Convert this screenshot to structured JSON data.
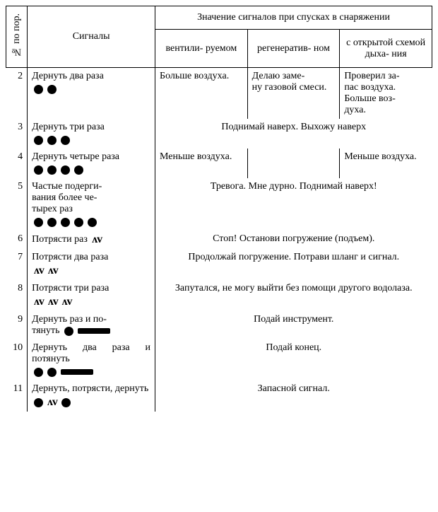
{
  "header": {
    "num": "№ по пор.",
    "signals": "Сигналы",
    "meanings_title": "Значение сигналов при спусках в снаряжении",
    "col_vent": "вентили-\nруемом",
    "col_regen": "регенератив-\nном",
    "col_open": "с открытой схемой дыха-\nния"
  },
  "rows": [
    {
      "n": "2",
      "signal_text": "Дернуть два раза",
      "symbols": "dot dot",
      "m1": "Больше воздуха.",
      "m2": "Делаю заме-\nну газовой смеси.",
      "m3": "Проверил за-\nпас воздуха. Больше воз-\nдуха.",
      "split": true
    },
    {
      "n": "3",
      "signal_text": "Дернуть три раза",
      "symbols": "dot dot dot",
      "merged": "Поднимай наверх. Выхожу наверх"
    },
    {
      "n": "4",
      "signal_text": "Дернуть четыре раза",
      "symbols": "dot dot dot dot",
      "m1": "Меньше воздуха.",
      "m2": "",
      "m3": "Меньше воздуха.",
      "split": true
    },
    {
      "n": "5",
      "signal_text": "Частые подерги-\nвания более че-\nтырех раз",
      "symbols": "dot dot dot dot dot",
      "merged": "Тревога. Мне дурно. Поднимай наверх!"
    },
    {
      "n": "6",
      "signal_text": "Потрясти раз",
      "symbols_inline": "zig",
      "merged": "Стоп! Останови погружение (подъем)."
    },
    {
      "n": "7",
      "signal_text": "Потрясти два раза",
      "symbols": "zig zig",
      "merged": "Продолжай погружение. Потрави шланг и сигнал."
    },
    {
      "n": "8",
      "signal_text": "Потрясти три раза",
      "symbols": "zig zig zig",
      "merged": "Запутался, не могу выйти без помощи другого водолаза."
    },
    {
      "n": "9",
      "signal_text": "Дернуть раз и по-\nтянуть",
      "symbols_inline_after": "dot bar",
      "merged": "Подай инструмент."
    },
    {
      "n": "10",
      "signal_text": "Дернуть два раза и потянуть",
      "symbols": "dot dot bar",
      "merged": "Подай конец."
    },
    {
      "n": "11",
      "signal_text": "Дернуть, потрясти, дернуть",
      "symbols": "dot zig dot",
      "merged": "Запасной сигнал."
    }
  ]
}
